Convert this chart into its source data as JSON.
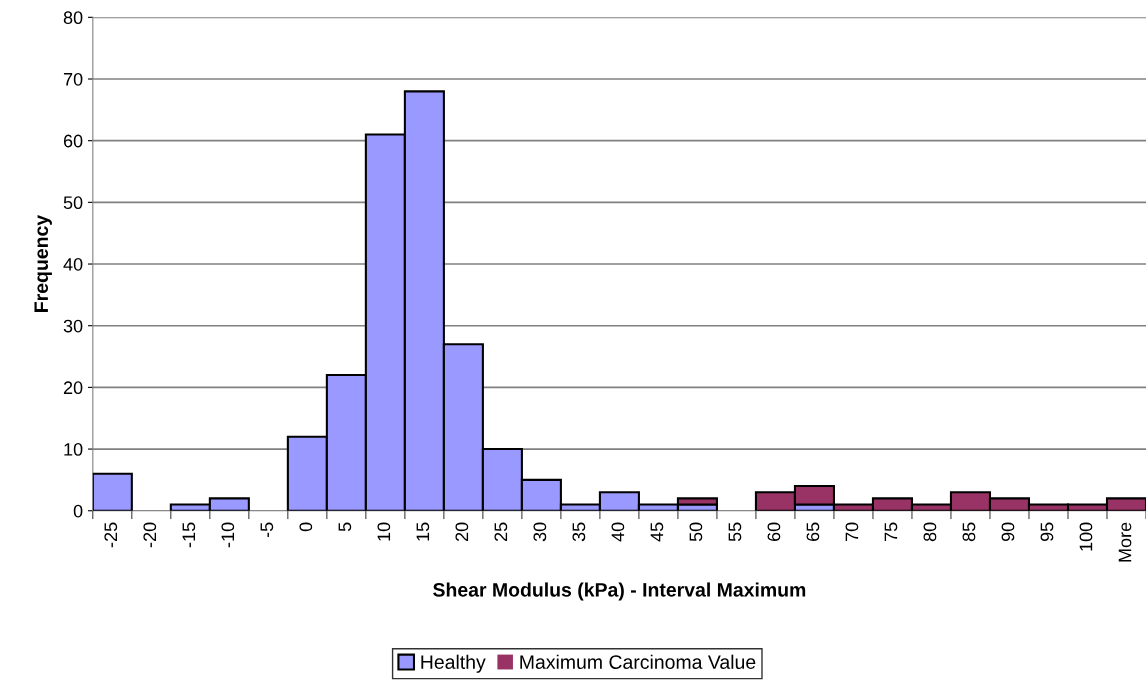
{
  "chart_data": {
    "type": "bar",
    "stacked": true,
    "xlabel": "Shear Modulus (kPa) - Interval Maximum",
    "ylabel": "Frequency",
    "categories": [
      "-25",
      "-20",
      "-15",
      "-10",
      "-5",
      "0",
      "5",
      "10",
      "15",
      "20",
      "25",
      "30",
      "35",
      "40",
      "45",
      "50",
      "55",
      "60",
      "65",
      "70",
      "75",
      "80",
      "85",
      "90",
      "95",
      "100",
      "More"
    ],
    "series": [
      {
        "name": "Healthy",
        "color": "#9999ff",
        "values": [
          6,
          0,
          1,
          2,
          0,
          12,
          22,
          61,
          68,
          27,
          10,
          5,
          1,
          3,
          1,
          1,
          0,
          0,
          1,
          0,
          0,
          0,
          0,
          0,
          0,
          0,
          0
        ]
      },
      {
        "name": "Maximum Carcinoma Value",
        "color": "#993366",
        "values": [
          0,
          0,
          0,
          0,
          0,
          0,
          0,
          0,
          0,
          0,
          0,
          0,
          0,
          0,
          0,
          1,
          0,
          3,
          3,
          1,
          2,
          1,
          3,
          2,
          1,
          1,
          2
        ]
      }
    ],
    "ylim": [
      0,
      80
    ],
    "yticks": [
      0,
      10,
      20,
      30,
      40,
      50,
      60,
      70,
      80
    ],
    "grid": "y",
    "legend": "bottom"
  }
}
